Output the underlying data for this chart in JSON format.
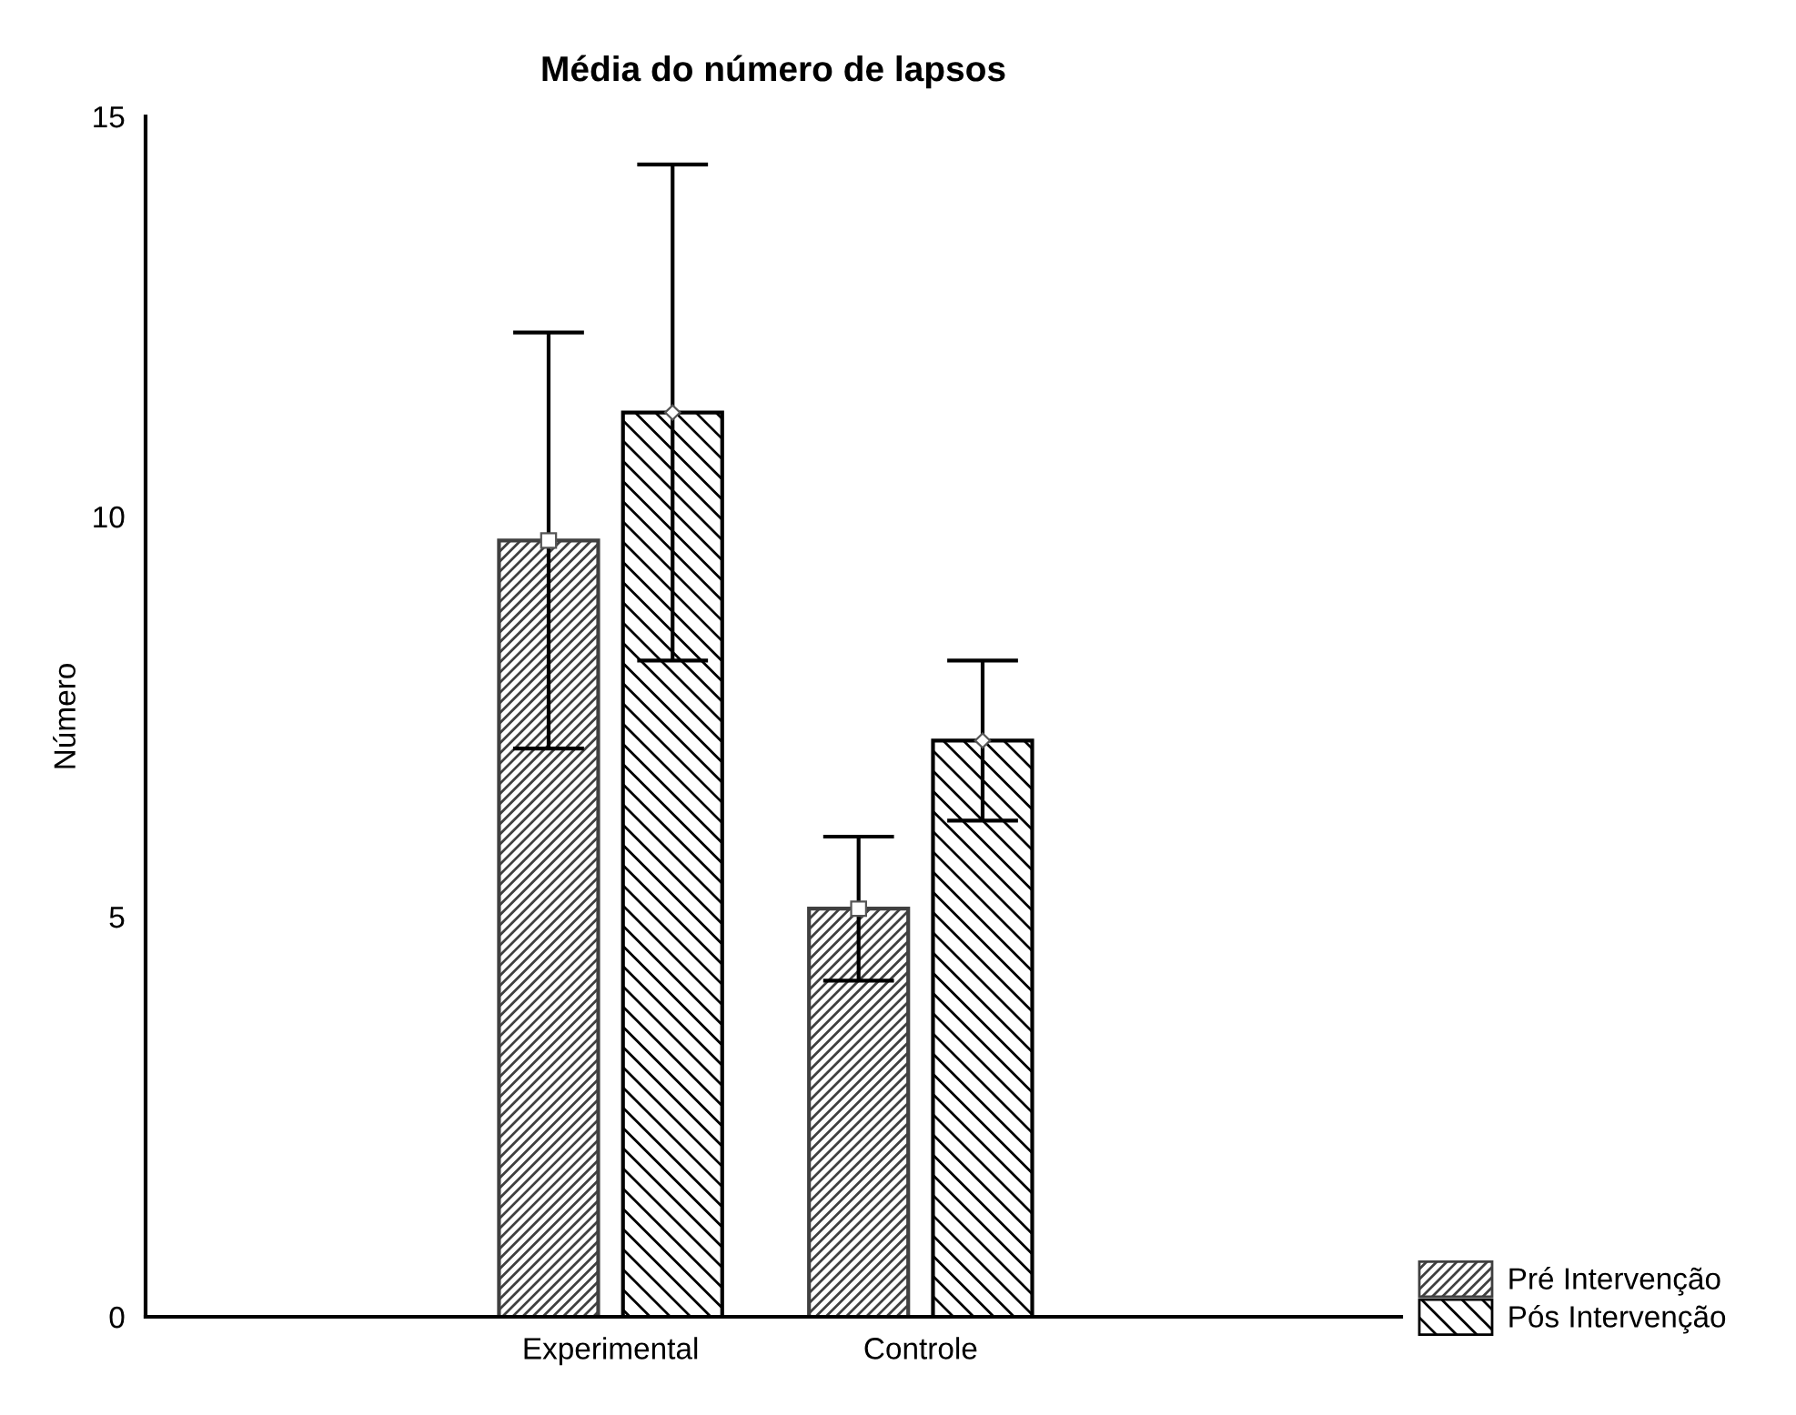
{
  "chart_data": {
    "type": "bar",
    "title": "Média do número de lapsos",
    "ylabel": "Número",
    "categories": [
      "Experimental",
      "Controle"
    ],
    "series": [
      {
        "name": "Pré Intervenção",
        "color": "#404040",
        "marker": "square",
        "values": [
          9.7,
          5.1
        ],
        "errors": [
          2.6,
          0.9
        ]
      },
      {
        "name": "Pós Intervenção",
        "color": "#000000",
        "marker": "diamond",
        "values": [
          11.3,
          7.2
        ],
        "errors": [
          3.1,
          1.0
        ]
      }
    ],
    "ylim": [
      0,
      15
    ],
    "yticks": [
      0,
      5,
      10,
      15
    ],
    "grid": false,
    "legend": "bottom right"
  }
}
